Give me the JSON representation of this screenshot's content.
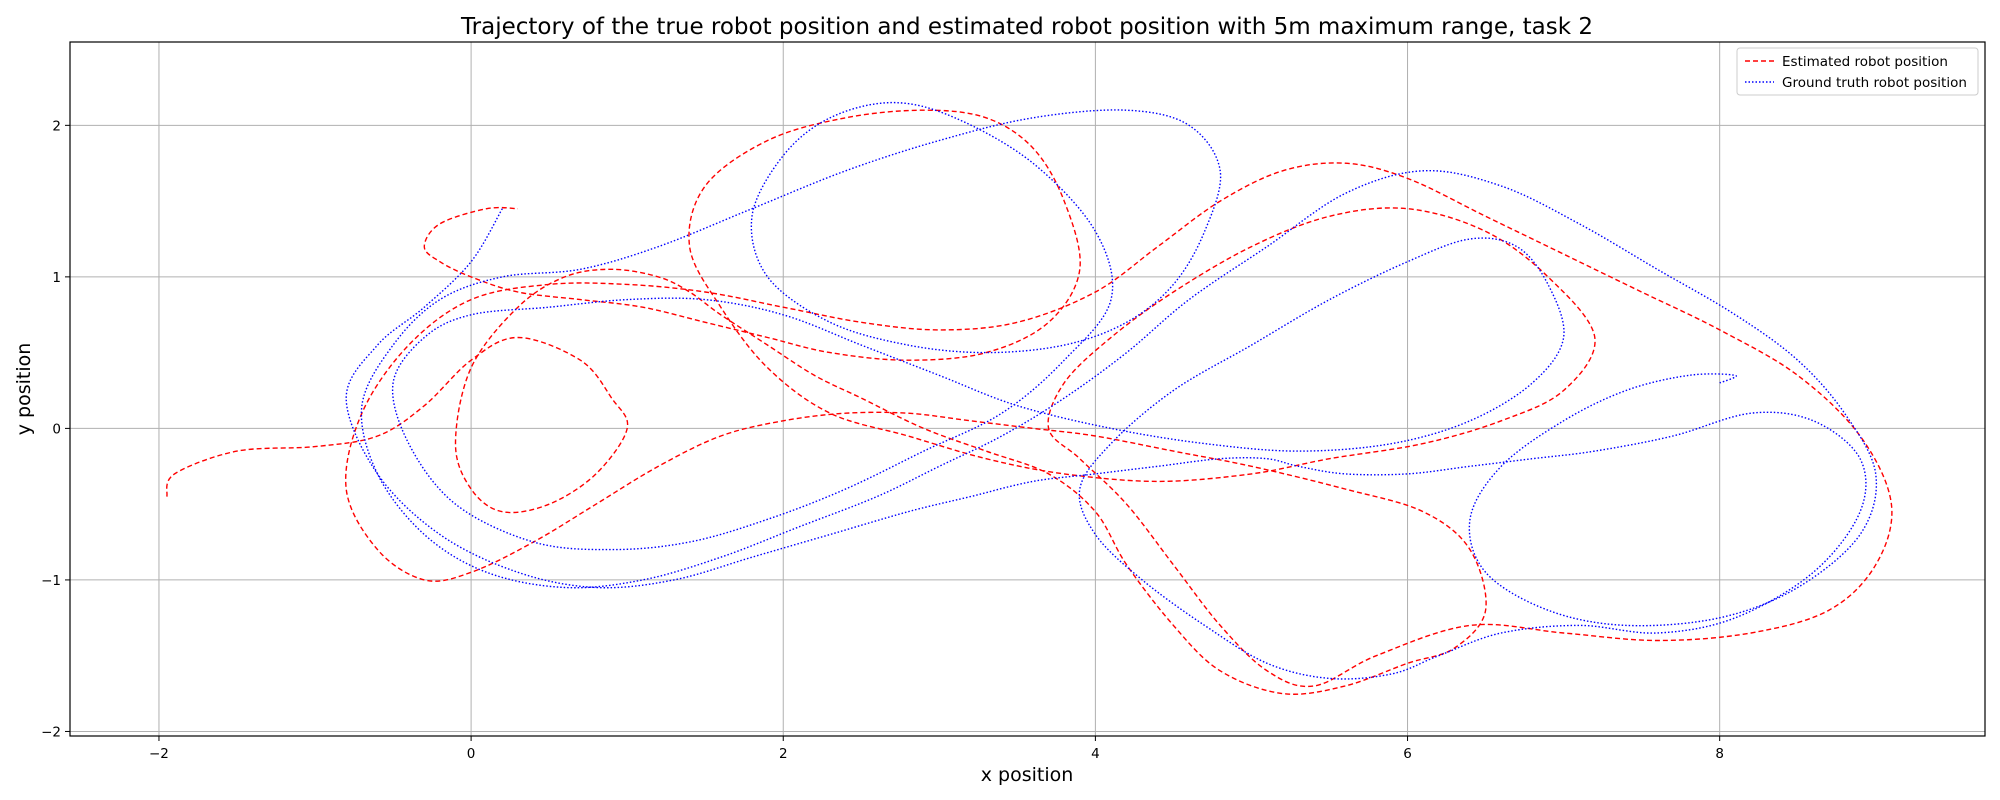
{
  "chart_data": {
    "type": "line",
    "title": "Trajectory of the true robot position and estimated robot position with 5m maximum range, task 2",
    "xlabel": "x position",
    "ylabel": "y position",
    "xlim": [
      -2.57,
      9.7
    ],
    "ylim": [
      -2.03,
      2.55
    ],
    "xticks": [
      -2,
      0,
      2,
      4,
      6,
      8
    ],
    "yticks": [
      -2,
      -1,
      0,
      1,
      2
    ],
    "xtick_labels": [
      "−2",
      "0",
      "2",
      "4",
      "6",
      "8"
    ],
    "ytick_labels": [
      "−2",
      "−1",
      "0",
      "1",
      "2"
    ],
    "grid": true,
    "legend_position": "top-right",
    "series": [
      {
        "name": "Estimated robot position",
        "color": "#ff0000",
        "style": "dashed",
        "x": [
          -1.95,
          -1.9,
          -1.5,
          -1.0,
          -0.6,
          -0.3,
          0.0,
          0.3,
          0.7,
          0.9,
          1.0,
          0.8,
          0.5,
          0.2,
          0.0,
          -0.1,
          0.0,
          0.3,
          0.6,
          0.9,
          1.2,
          1.4,
          1.6,
          1.9,
          2.2,
          2.5,
          2.9,
          3.3,
          3.7,
          4.0,
          4.2,
          4.5,
          4.8,
          5.2,
          5.6,
          6.0,
          6.3,
          6.5,
          6.4,
          6.1,
          5.6,
          5.0,
          4.5,
          4.0,
          3.6,
          3.2,
          2.8,
          2.4,
          2.0,
          1.6,
          1.2,
          0.8,
          0.4,
          0.0,
          -0.3,
          -0.6,
          -0.8,
          -0.7,
          -0.4,
          0.0,
          0.5,
          1.0,
          1.5,
          2.0,
          2.5,
          3.0,
          3.5,
          4.0,
          4.4,
          4.8,
          5.2,
          5.6,
          6.0,
          6.5,
          7.0,
          7.5,
          8.0,
          8.5,
          8.9,
          9.1,
          9.0,
          8.7,
          8.2,
          7.6,
          7.0,
          6.4,
          5.8,
          5.4,
          5.1,
          4.8,
          4.5,
          4.2,
          3.9,
          3.7,
          3.8,
          4.1,
          4.5,
          5.0,
          5.5,
          6.0,
          6.5,
          6.9,
          7.2,
          7.0,
          6.6,
          6.1,
          5.5,
          5.0,
          4.4,
          3.8,
          3.3,
          2.8,
          2.3,
          1.9,
          1.6,
          1.4,
          1.5,
          1.9,
          2.4,
          2.9,
          3.3,
          3.6,
          3.8,
          3.9,
          3.7,
          3.3,
          2.8,
          2.3,
          1.9,
          1.5,
          1.1,
          0.7,
          0.3,
          0.0,
          -0.2,
          -0.3,
          -0.2,
          0.1,
          0.3
        ],
        "y": [
          -0.45,
          -0.3,
          -0.15,
          -0.12,
          -0.05,
          0.15,
          0.45,
          0.6,
          0.45,
          0.2,
          0.0,
          -0.3,
          -0.5,
          -0.55,
          -0.4,
          -0.1,
          0.4,
          0.8,
          1.0,
          1.05,
          1.0,
          0.9,
          0.75,
          0.55,
          0.35,
          0.2,
          0.0,
          -0.15,
          -0.3,
          -0.55,
          -0.9,
          -1.3,
          -1.6,
          -1.75,
          -1.7,
          -1.55,
          -1.45,
          -1.2,
          -0.8,
          -0.55,
          -0.4,
          -0.25,
          -0.15,
          -0.05,
          0.0,
          0.05,
          0.1,
          0.1,
          0.05,
          -0.05,
          -0.25,
          -0.5,
          -0.75,
          -0.95,
          -1.0,
          -0.8,
          -0.4,
          0.1,
          0.55,
          0.85,
          0.95,
          0.95,
          0.9,
          0.8,
          0.7,
          0.65,
          0.7,
          0.9,
          1.2,
          1.5,
          1.7,
          1.75,
          1.65,
          1.4,
          1.15,
          0.9,
          0.65,
          0.35,
          -0.05,
          -0.5,
          -0.9,
          -1.2,
          -1.35,
          -1.4,
          -1.35,
          -1.3,
          -1.5,
          -1.7,
          -1.6,
          -1.3,
          -0.9,
          -0.5,
          -0.2,
          0.0,
          0.3,
          0.6,
          0.9,
          1.2,
          1.4,
          1.45,
          1.3,
          1.0,
          0.6,
          0.25,
          0.05,
          -0.1,
          -0.2,
          -0.3,
          -0.35,
          -0.3,
          -0.2,
          -0.05,
          0.1,
          0.4,
          0.8,
          1.2,
          1.6,
          1.9,
          2.05,
          2.1,
          2.05,
          1.85,
          1.5,
          1.05,
          0.7,
          0.5,
          0.45,
          0.5,
          0.6,
          0.7,
          0.8,
          0.85,
          0.9,
          1.0,
          1.1,
          1.2,
          1.35,
          1.45,
          1.45
        ]
      },
      {
        "name": "Ground truth robot position",
        "color": "#0000ff",
        "style": "dotted",
        "x": [
          0.2,
          0.0,
          -0.3,
          -0.6,
          -0.8,
          -0.6,
          -0.2,
          0.3,
          0.8,
          1.3,
          1.8,
          2.3,
          2.8,
          3.2,
          3.6,
          4.0,
          4.4,
          4.8,
          5.1,
          5.3,
          5.6,
          6.0,
          6.4,
          6.8,
          7.2,
          7.7,
          8.2,
          8.6,
          8.9,
          8.9,
          8.6,
          8.1,
          7.6,
          7.1,
          6.6,
          6.2,
          5.9,
          5.5,
          5.1,
          4.7,
          4.3,
          4.0,
          3.9,
          4.1,
          4.5,
          5.0,
          5.5,
          6.0,
          6.4,
          6.7,
          6.9,
          7.0,
          6.8,
          6.4,
          5.9,
          5.3,
          4.7,
          4.1,
          3.5,
          3.0,
          2.5,
          2.0,
          1.5,
          1.0,
          0.5,
          0.0,
          -0.3,
          -0.5,
          -0.4,
          -0.1,
          0.4,
          0.9,
          1.4,
          1.9,
          2.4,
          2.9,
          3.4,
          3.8,
          4.1,
          4.0,
          3.6,
          3.1,
          2.7,
          2.3,
          2.0,
          1.8,
          1.9,
          2.3,
          2.8,
          3.3,
          3.8,
          4.2,
          4.5,
          4.7,
          4.8,
          4.6,
          4.2,
          3.6,
          3.0,
          2.4,
          1.8,
          1.2,
          0.7,
          0.2,
          -0.2,
          -0.5,
          -0.7,
          -0.6,
          -0.3,
          0.1,
          0.6,
          1.1,
          1.6,
          2.1,
          2.6,
          3.0,
          3.4,
          3.8,
          4.2,
          4.6,
          5.1,
          5.6,
          6.1,
          6.6,
          7.1,
          7.6,
          8.1,
          8.5,
          8.8,
          9.0,
          8.9,
          8.5,
          8.0,
          7.4,
          6.9,
          6.5,
          6.4,
          6.6,
          7.0,
          7.4,
          7.8,
          8.1,
          8.0
        ],
        "y": [
          1.45,
          1.1,
          0.8,
          0.55,
          0.2,
          -0.3,
          -0.7,
          -0.95,
          -1.05,
          -1.0,
          -0.85,
          -0.7,
          -0.55,
          -0.45,
          -0.35,
          -0.3,
          -0.25,
          -0.2,
          -0.2,
          -0.25,
          -0.3,
          -0.3,
          -0.25,
          -0.2,
          -0.15,
          -0.05,
          0.1,
          0.05,
          -0.2,
          -0.55,
          -0.95,
          -1.25,
          -1.35,
          -1.3,
          -1.35,
          -1.5,
          -1.62,
          -1.65,
          -1.55,
          -1.3,
          -1.0,
          -0.7,
          -0.4,
          -0.1,
          0.25,
          0.55,
          0.85,
          1.1,
          1.25,
          1.2,
          0.95,
          0.6,
          0.3,
          0.05,
          -0.1,
          -0.15,
          -0.1,
          0.0,
          0.15,
          0.35,
          0.55,
          0.75,
          0.85,
          0.85,
          0.8,
          0.75,
          0.6,
          0.3,
          -0.1,
          -0.5,
          -0.75,
          -0.8,
          -0.75,
          -0.6,
          -0.4,
          -0.15,
          0.1,
          0.45,
          0.85,
          1.3,
          1.75,
          2.05,
          2.15,
          2.05,
          1.8,
          1.4,
          1.0,
          0.7,
          0.55,
          0.5,
          0.55,
          0.7,
          0.95,
          1.3,
          1.7,
          2.0,
          2.1,
          2.05,
          1.9,
          1.7,
          1.45,
          1.2,
          1.05,
          1.0,
          0.85,
          0.55,
          0.15,
          -0.3,
          -0.7,
          -0.95,
          -1.05,
          -1.0,
          -0.85,
          -0.65,
          -0.45,
          -0.25,
          -0.05,
          0.2,
          0.5,
          0.85,
          1.2,
          1.55,
          1.7,
          1.6,
          1.35,
          1.05,
          0.75,
          0.45,
          0.1,
          -0.3,
          -0.7,
          -1.05,
          -1.25,
          -1.3,
          -1.2,
          -0.95,
          -0.6,
          -0.25,
          0.05,
          0.25,
          0.35,
          0.35,
          0.3
        ]
      }
    ]
  }
}
